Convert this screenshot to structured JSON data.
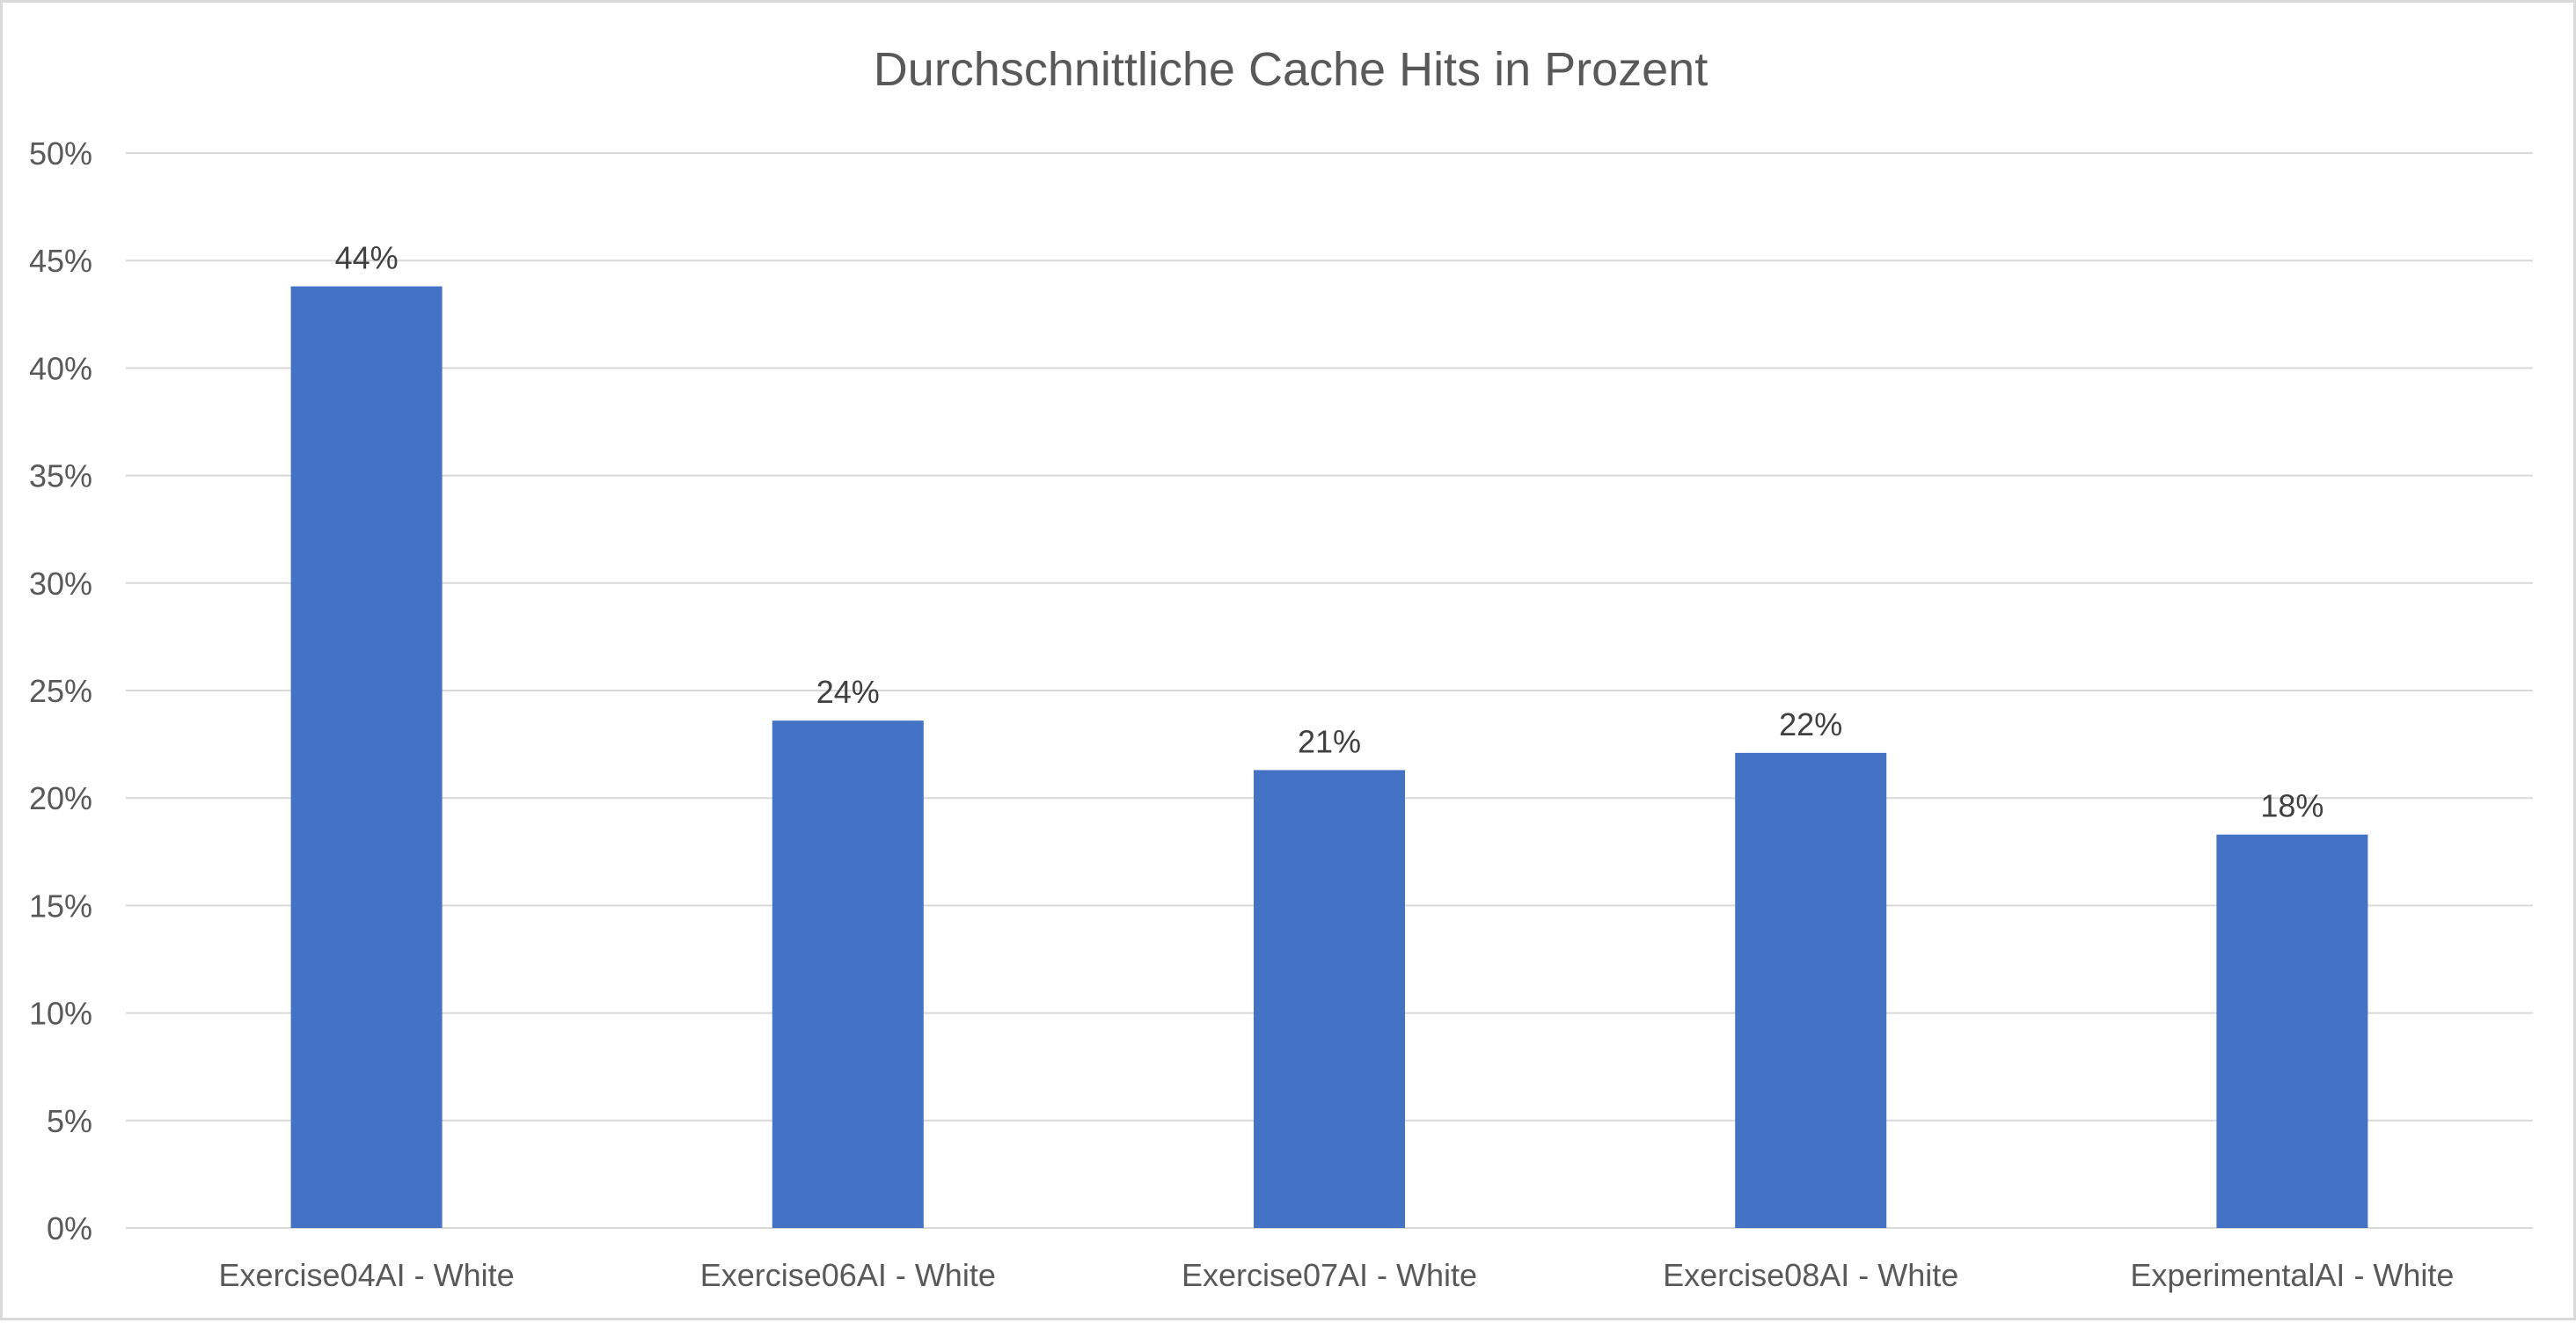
{
  "chart_data": {
    "type": "bar",
    "title": "Durchschnittliche Cache Hits in Prozent",
    "xlabel": "",
    "ylabel": "",
    "categories": [
      "Exercise04AI - White",
      "Exercise06AI - White",
      "Exercise07AI - White",
      "Exercise08AI - White",
      "ExperimentalAI - White"
    ],
    "series": [
      {
        "values": [
          0.438,
          0.236,
          0.213,
          0.221,
          0.183
        ],
        "data_labels": [
          "44%",
          "24%",
          "21%",
          "22%",
          "18%"
        ],
        "color": "#4472C4"
      }
    ],
    "ylim": [
      0,
      0.5
    ],
    "yticks": [
      0,
      0.05,
      0.1,
      0.15,
      0.2,
      0.25,
      0.3,
      0.35,
      0.4,
      0.45,
      0.5
    ],
    "ytick_labels": [
      "0%",
      "5%",
      "10%",
      "15%",
      "20%",
      "25%",
      "30%",
      "35%",
      "40%",
      "45%",
      "50%"
    ],
    "grid": true,
    "legend": "none",
    "colors": {
      "bar": "#4472C4",
      "gridline": "#d9d9d9",
      "axis_line": "#d9d9d9",
      "text": "#595959",
      "data_label": "#404040"
    }
  }
}
